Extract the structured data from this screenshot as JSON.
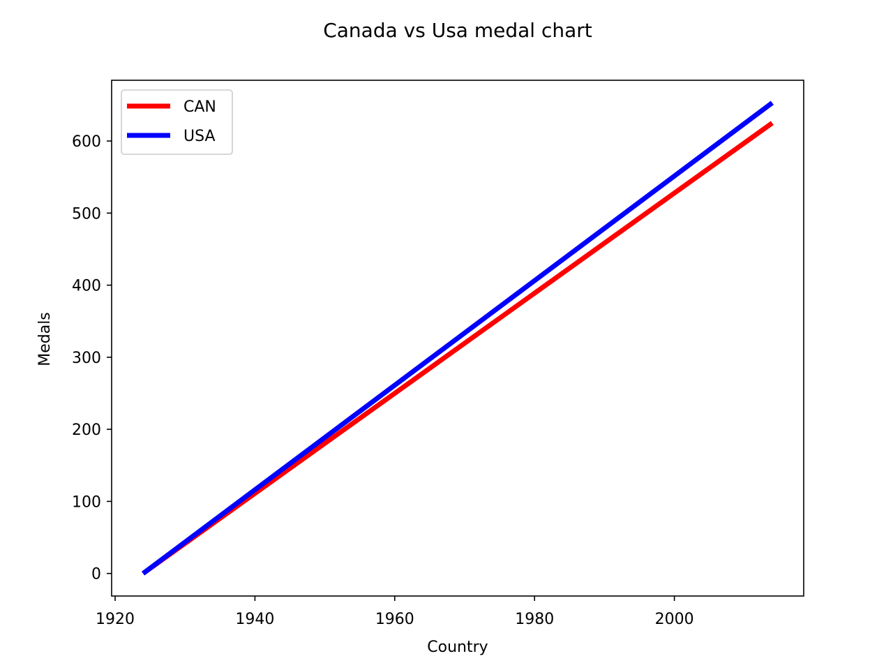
{
  "chart_data": {
    "type": "line",
    "title": "Canada vs Usa medal chart",
    "xlabel": "Country",
    "ylabel": "Medals",
    "xlim": [
      1919.5,
      2018.5
    ],
    "ylim": [
      -31.3,
      684.3
    ],
    "xticks": [
      1920,
      1940,
      1960,
      1980,
      2000
    ],
    "yticks": [
      0,
      100,
      200,
      300,
      400,
      500,
      600
    ],
    "grid": false,
    "legend_position": "top-left",
    "x": [
      1924,
      2014
    ],
    "series": [
      {
        "name": "CAN",
        "color": "#ff0000",
        "values": [
          0,
          625
        ]
      },
      {
        "name": "USA",
        "color": "#0000ff",
        "values": [
          0,
          653
        ]
      }
    ]
  }
}
